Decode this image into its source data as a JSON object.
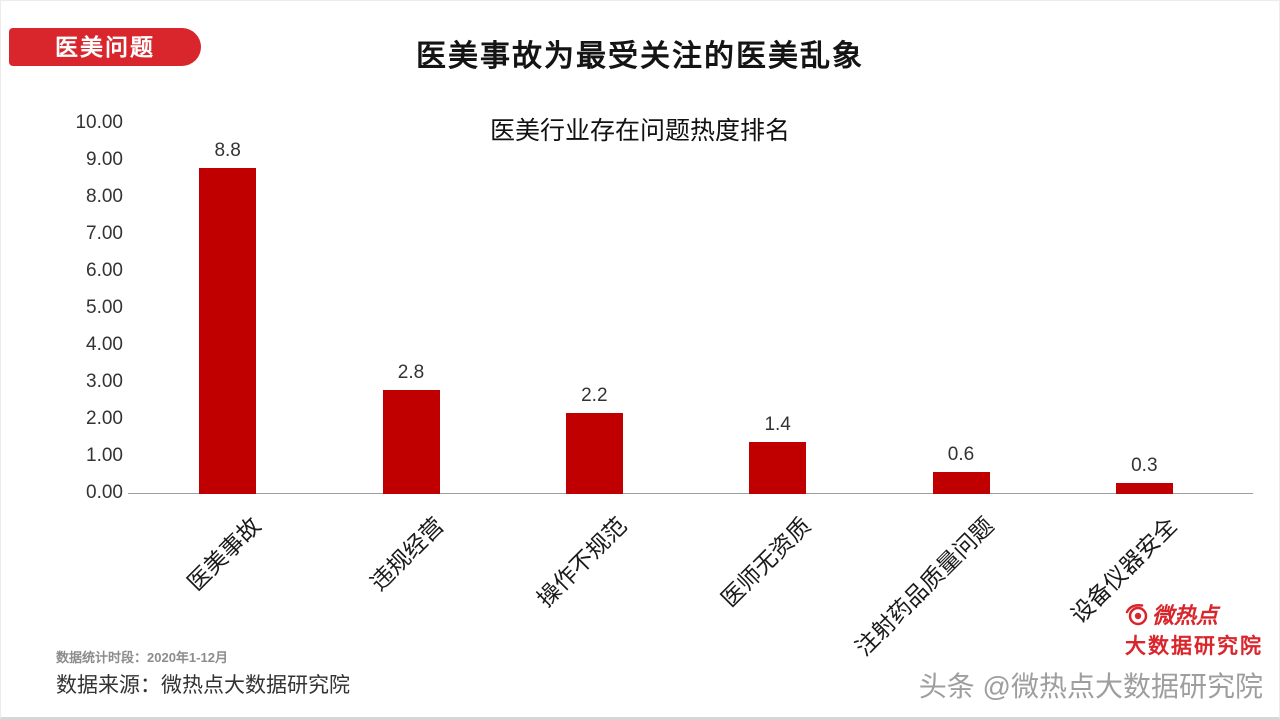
{
  "badge": {
    "label": "医美问题"
  },
  "header": {
    "title": "医美事故为最受关注的医美乱象"
  },
  "chart_data": {
    "type": "bar",
    "title": "医美行业存在问题热度排名",
    "categories": [
      "医美事故",
      "违规经营",
      "操作不规范",
      "医师无资质",
      "注射药品质量问题",
      "设备仪器安全"
    ],
    "values": [
      8.8,
      2.8,
      2.2,
      1.4,
      0.6,
      0.3
    ],
    "value_labels": [
      "8.8",
      "2.8",
      "2.2",
      "1.4",
      "0.6",
      "0.3"
    ],
    "ylim": [
      0,
      10
    ],
    "ytick_labels": [
      "10.00",
      "9.00",
      "8.00",
      "7.00",
      "6.00",
      "5.00",
      "4.00",
      "3.00",
      "2.00",
      "1.00",
      "0.00"
    ],
    "bar_color": "#c00000",
    "grid": false,
    "legend": "none",
    "xlabel": "",
    "ylabel": ""
  },
  "footer": {
    "period": "数据统计时段：2020年1-12月",
    "source": "数据来源：微热点大数据研究院"
  },
  "branding": {
    "logo_line1": "微热点",
    "logo_line2": "大数据研究院",
    "watermark": "头条 @微热点大数据研究院",
    "logo_color": "#d9262c"
  },
  "colors": {
    "accent": "#d9262c",
    "bar": "#c00000",
    "text": "#1a1a1a",
    "muted": "#8c8c8c",
    "watermark": "#9e9e9e"
  }
}
